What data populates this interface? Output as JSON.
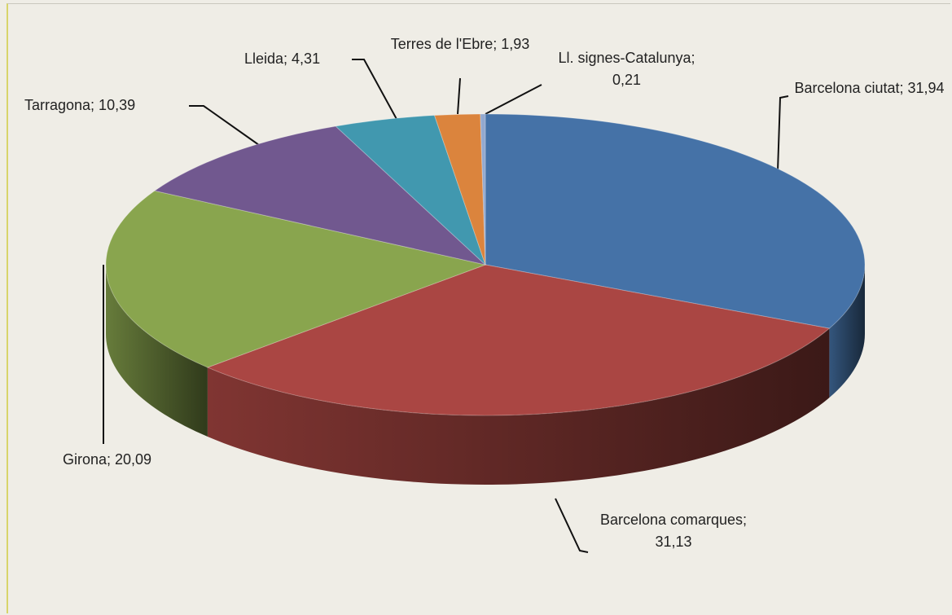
{
  "chart_data": {
    "type": "pie",
    "three_d": true,
    "values": [
      31.94,
      31.13,
      20.09,
      10.39,
      4.31,
      1.93,
      0.21
    ],
    "value_labels": [
      "Barcelona ciutat; 31,94",
      "Barcelona comarques; 31,13",
      "Girona; 20,09",
      "Tarragona; 10,39",
      "Lleida; 4,31",
      "Terres de l'Ebre; 1,93",
      "Ll. signes-Catalunya; 0,21"
    ],
    "colors": [
      "#4572a7",
      "#aa4643",
      "#89a54e",
      "#71588f",
      "#4198af",
      "#db843d",
      "#93a9cf"
    ]
  }
}
